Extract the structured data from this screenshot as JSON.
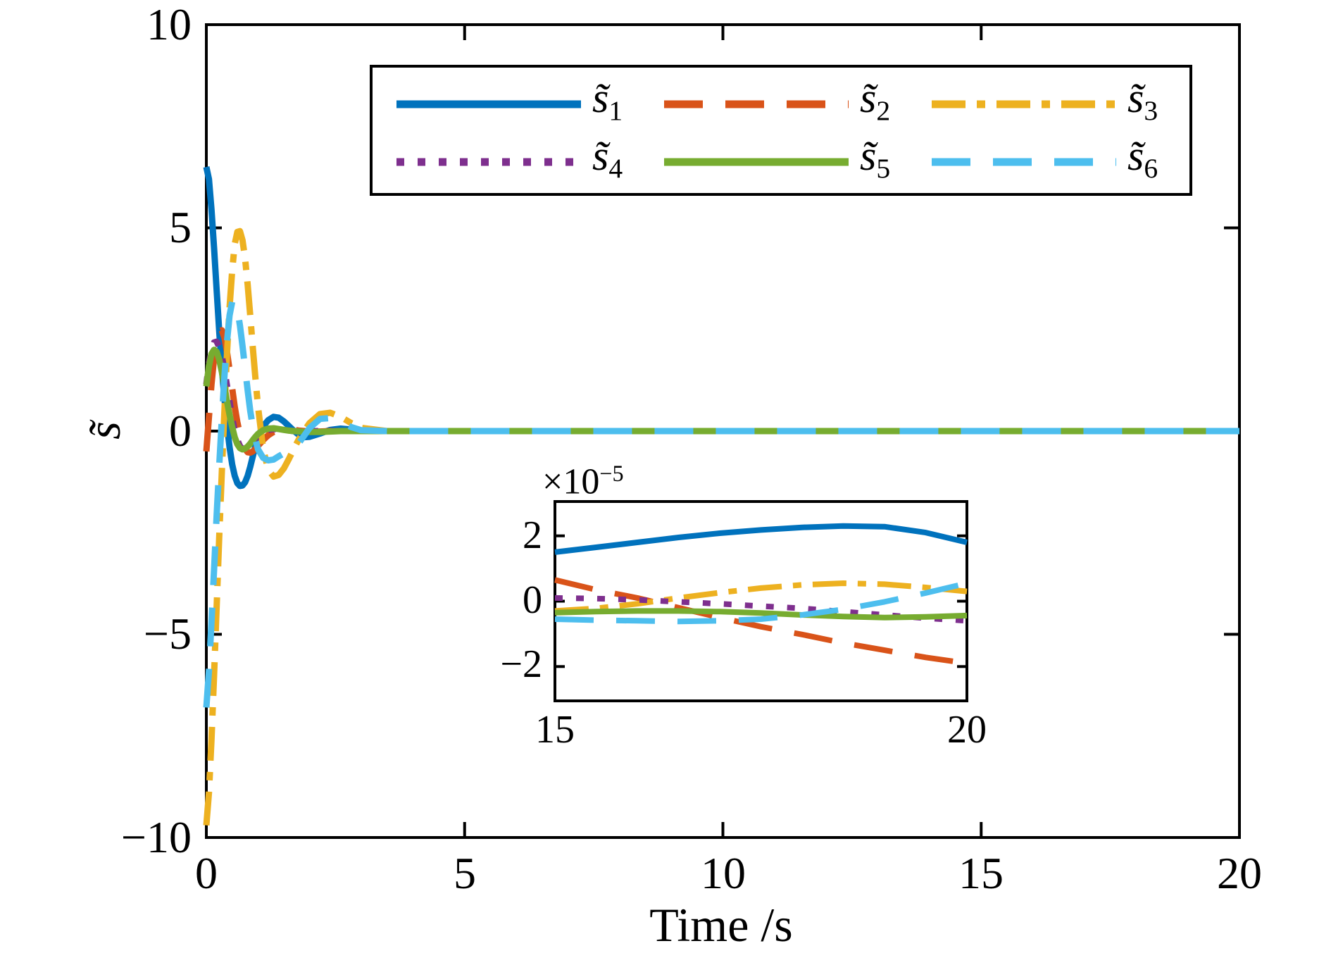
{
  "figure": {
    "background": "#ffffff",
    "axis_color": "#000000"
  },
  "chart_data": {
    "type": "line",
    "main": {
      "xlabel": "Time /s",
      "ylabel": "s̃",
      "xlim": [
        0,
        20
      ],
      "ylim": [
        -10,
        10
      ],
      "xtickvals": [
        0,
        5,
        10,
        15,
        20
      ],
      "ytickvals": [
        -10,
        -5,
        0,
        5,
        10
      ],
      "xticks": [
        "0",
        "5",
        "10",
        "15",
        "20"
      ],
      "yticks": [
        "−10",
        "−5",
        "0",
        "5",
        "10"
      ],
      "grid": false,
      "t": [
        0,
        0.05,
        0.1,
        0.15,
        0.2,
        0.25,
        0.3,
        0.35,
        0.4,
        0.45,
        0.5,
        0.55,
        0.6,
        0.65,
        0.7,
        0.75,
        0.8,
        0.85,
        0.9,
        0.95,
        1.0,
        1.1,
        1.2,
        1.3,
        1.4,
        1.5,
        1.6,
        1.7,
        1.8,
        1.9,
        2.0,
        2.2,
        2.4,
        2.6,
        2.8,
        3.0,
        3.5,
        4.0,
        5.0,
        8.0,
        12.0,
        16.0,
        20.0
      ],
      "series": [
        {
          "id": "s1",
          "base": "s̃",
          "sub": "1",
          "color": "#0072BD",
          "linestyle": "solid",
          "values": [
            6.5,
            6.2,
            5.45,
            4.5,
            3.45,
            2.45,
            1.55,
            0.8,
            0.15,
            -0.4,
            -0.82,
            -1.1,
            -1.28,
            -1.35,
            -1.34,
            -1.26,
            -1.1,
            -0.88,
            -0.62,
            -0.36,
            -0.12,
            0.12,
            0.27,
            0.35,
            0.33,
            0.24,
            0.12,
            0.0,
            -0.1,
            -0.15,
            -0.14,
            -0.06,
            0.03,
            0.06,
            0.04,
            0.01,
            0,
            0,
            0,
            0,
            0,
            0,
            0
          ]
        },
        {
          "id": "s2",
          "base": "s̃",
          "sub": "2",
          "color": "#D95319",
          "linestyle": "dashed",
          "values": [
            -0.5,
            0.35,
            1.15,
            1.8,
            2.25,
            2.45,
            2.48,
            2.3,
            1.95,
            1.5,
            1.05,
            0.6,
            0.22,
            -0.08,
            -0.3,
            -0.44,
            -0.52,
            -0.53,
            -0.5,
            -0.44,
            -0.36,
            -0.22,
            -0.1,
            -0.02,
            0.03,
            0.05,
            0.05,
            0.03,
            0.01,
            0,
            -0.01,
            -0.01,
            0,
            0,
            0,
            0,
            0,
            0,
            0,
            0,
            0,
            0,
            0
          ]
        },
        {
          "id": "s3",
          "base": "s̃",
          "sub": "3",
          "color": "#EDB120",
          "linestyle": "dashdot",
          "values": [
            -9.7,
            -8.9,
            -7.6,
            -6.0,
            -4.3,
            -2.6,
            -1.0,
            0.5,
            1.9,
            3.05,
            3.95,
            4.6,
            4.9,
            4.92,
            4.7,
            4.25,
            3.6,
            2.85,
            2.05,
            1.3,
            0.6,
            -0.45,
            -0.95,
            -1.12,
            -1.08,
            -0.92,
            -0.68,
            -0.42,
            -0.18,
            0.02,
            0.2,
            0.42,
            0.45,
            0.35,
            0.2,
            0.08,
            0,
            0,
            0,
            0,
            0,
            0,
            0
          ]
        },
        {
          "id": "s4",
          "base": "s̃",
          "sub": "4",
          "color": "#7E2F8E",
          "linestyle": "dotted",
          "values": [
            1.15,
            1.65,
            2.0,
            2.18,
            2.2,
            2.08,
            1.85,
            1.5,
            1.12,
            0.72,
            0.32,
            0,
            -0.22,
            -0.37,
            -0.44,
            -0.45,
            -0.41,
            -0.34,
            -0.26,
            -0.18,
            -0.11,
            -0.02,
            0.03,
            0.05,
            0.04,
            0.03,
            0.01,
            0,
            0,
            0,
            0,
            0,
            0,
            0,
            0,
            0,
            0,
            0,
            0,
            0,
            0,
            0,
            0
          ]
        },
        {
          "id": "s5",
          "base": "s̃",
          "sub": "5",
          "color": "#77AC30",
          "linestyle": "solid",
          "values": [
            1.1,
            1.6,
            1.9,
            2.0,
            1.95,
            1.76,
            1.46,
            1.1,
            0.74,
            0.4,
            0.1,
            -0.15,
            -0.32,
            -0.42,
            -0.45,
            -0.43,
            -0.38,
            -0.31,
            -0.22,
            -0.14,
            -0.07,
            0.02,
            0.06,
            0.07,
            0.05,
            0.03,
            0.01,
            0,
            -0.01,
            -0.02,
            -0.02,
            -0.02,
            -0.01,
            0,
            0,
            0,
            0,
            0,
            0,
            0,
            0,
            0,
            0
          ]
        },
        {
          "id": "s6",
          "base": "s̃",
          "sub": "6",
          "color": "#4DBEEE",
          "linestyle": "dashed",
          "values": [
            -6.8,
            -5.9,
            -4.7,
            -3.4,
            -2.05,
            -0.85,
            0.3,
            1.35,
            2.2,
            2.85,
            3.18,
            3.2,
            3.0,
            2.6,
            2.1,
            1.55,
            1.0,
            0.5,
            0.1,
            -0.2,
            -0.45,
            -0.66,
            -0.72,
            -0.7,
            -0.62,
            -0.55,
            -0.5,
            -0.42,
            -0.28,
            -0.1,
            0.08,
            0.3,
            0.32,
            0.22,
            0.1,
            0.02,
            0,
            0,
            0,
            0,
            0,
            0,
            0
          ]
        }
      ]
    },
    "inset": {
      "scale_base": "×10",
      "scale_exp": "−5",
      "unit_scale": "1e-5",
      "xlim": [
        15,
        20
      ],
      "ylim_e5": [
        -3.05,
        3.05
      ],
      "xtickvals": [
        15,
        20
      ],
      "ytickvals": [
        -2,
        0,
        2
      ],
      "xticks": [
        "15",
        "20"
      ],
      "yticks": [
        "−2",
        "0",
        "2"
      ],
      "grid": false,
      "t": [
        15,
        15.5,
        16,
        16.5,
        17,
        17.5,
        18,
        18.5,
        19,
        19.5,
        20
      ],
      "series": [
        {
          "id": "s1",
          "color": "#0072BD",
          "linestyle": "solid",
          "values_e5": [
            1.5,
            1.65,
            1.8,
            1.95,
            2.08,
            2.18,
            2.26,
            2.3,
            2.28,
            2.1,
            1.8
          ]
        },
        {
          "id": "s2",
          "color": "#D95319",
          "linestyle": "dashed",
          "values_e5": [
            0.65,
            0.35,
            0.1,
            -0.2,
            -0.5,
            -0.78,
            -1.02,
            -1.28,
            -1.5,
            -1.72,
            -1.9
          ]
        },
        {
          "id": "s3",
          "color": "#EDB120",
          "linestyle": "dashdot",
          "values_e5": [
            -0.3,
            -0.22,
            -0.08,
            0.1,
            0.26,
            0.4,
            0.5,
            0.55,
            0.52,
            0.42,
            0.3
          ]
        },
        {
          "id": "s4",
          "color": "#7E2F8E",
          "linestyle": "dotted",
          "values_e5": [
            0.1,
            0.08,
            0.04,
            -0.02,
            -0.08,
            -0.15,
            -0.22,
            -0.32,
            -0.42,
            -0.52,
            -0.6
          ]
        },
        {
          "id": "s5",
          "color": "#77AC30",
          "linestyle": "solid",
          "values_e5": [
            -0.35,
            -0.32,
            -0.3,
            -0.3,
            -0.32,
            -0.36,
            -0.42,
            -0.47,
            -0.5,
            -0.48,
            -0.44
          ]
        },
        {
          "id": "s6",
          "color": "#4DBEEE",
          "linestyle": "dashed",
          "values_e5": [
            -0.55,
            -0.58,
            -0.6,
            -0.62,
            -0.6,
            -0.55,
            -0.42,
            -0.25,
            -0.02,
            0.25,
            0.55
          ]
        }
      ]
    },
    "legend": {
      "rows": 2,
      "cols": 3,
      "position": "top-center-inside",
      "items": [
        {
          "base": "s̃",
          "sub": "1",
          "color": "#0072BD",
          "linestyle": "solid"
        },
        {
          "base": "s̃",
          "sub": "2",
          "color": "#D95319",
          "linestyle": "dashed"
        },
        {
          "base": "s̃",
          "sub": "3",
          "color": "#EDB120",
          "linestyle": "dashdot"
        },
        {
          "base": "s̃",
          "sub": "4",
          "color": "#7E2F8E",
          "linestyle": "dotted"
        },
        {
          "base": "s̃",
          "sub": "5",
          "color": "#77AC30",
          "linestyle": "solid"
        },
        {
          "base": "s̃",
          "sub": "6",
          "color": "#4DBEEE",
          "linestyle": "dashed"
        }
      ]
    }
  }
}
